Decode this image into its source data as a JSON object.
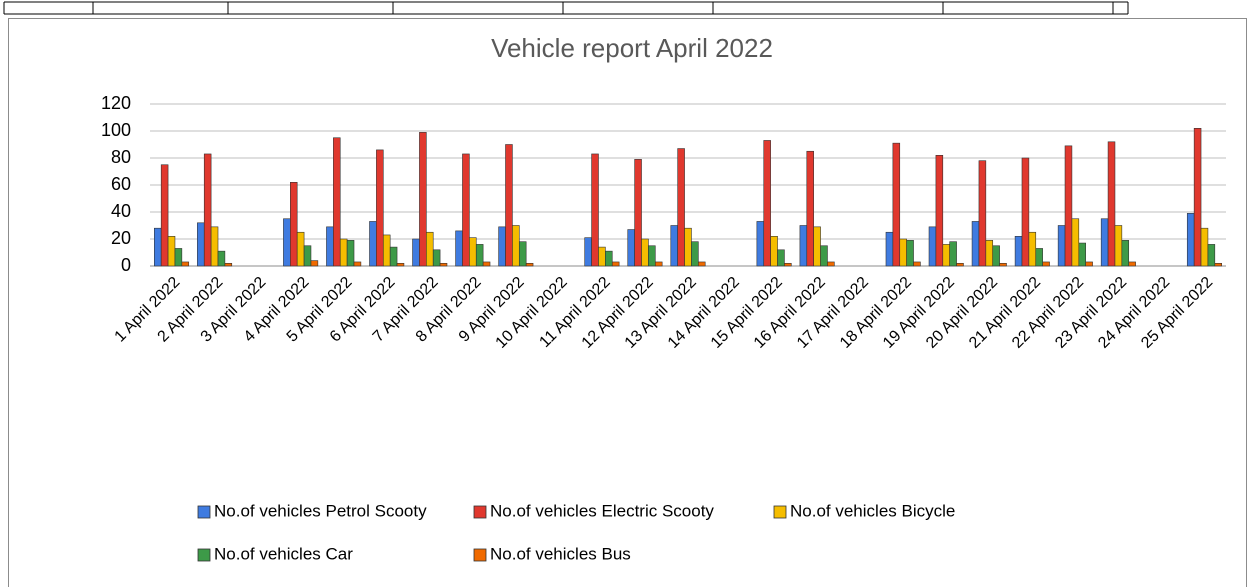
{
  "chart_data": {
    "type": "bar",
    "title": "Vehicle report April 2022",
    "categories": [
      "1 April 2022",
      "2 April 2022",
      "3 April 2022",
      "4 April 2022",
      "5 April 2022",
      "6 April 2022",
      "7 April 2022",
      "8 April 2022",
      "9 April 2022",
      "10 April 2022",
      "11 April 2022",
      "12 April 2022",
      "13 April 2022",
      "14 April 2022",
      "15 April 2022",
      "16 April 2022",
      "17 April 2022",
      "18 April 2022",
      "19 April 2022",
      "20 April 2022",
      "21 April 2022",
      "22 April 2022",
      "23 April 2022",
      "24 April 2022",
      "25 April 2022"
    ],
    "series": [
      {
        "name": "No.of vehicles Petrol Scooty",
        "color": "#3f7be0",
        "values": [
          28,
          32,
          null,
          35,
          29,
          33,
          20,
          26,
          29,
          null,
          21,
          27,
          30,
          null,
          33,
          30,
          null,
          25,
          29,
          33,
          22,
          30,
          35,
          null,
          39
        ]
      },
      {
        "name": "No.of vehicles Electric Scooty",
        "color": "#e0382e",
        "values": [
          75,
          83,
          null,
          62,
          95,
          86,
          99,
          83,
          90,
          null,
          83,
          79,
          87,
          null,
          93,
          85,
          null,
          91,
          82,
          78,
          80,
          89,
          92,
          null,
          102
        ]
      },
      {
        "name": "No.of vehicles Bicycle",
        "color": "#f5bd00",
        "values": [
          22,
          29,
          null,
          25,
          20,
          23,
          25,
          21,
          30,
          null,
          14,
          20,
          28,
          null,
          22,
          29,
          null,
          20,
          16,
          19,
          25,
          35,
          30,
          null,
          28
        ]
      },
      {
        "name": "No.of vehicles Car",
        "color": "#3d9a48",
        "values": [
          13,
          11,
          null,
          15,
          19,
          14,
          12,
          16,
          18,
          null,
          11,
          15,
          18,
          null,
          12,
          15,
          null,
          19,
          18,
          15,
          13,
          17,
          19,
          null,
          16
        ]
      },
      {
        "name": "No.of vehicles Bus",
        "color": "#f06a00",
        "values": [
          3,
          2,
          null,
          4,
          3,
          2,
          2,
          3,
          2,
          null,
          3,
          3,
          3,
          null,
          2,
          3,
          null,
          3,
          2,
          2,
          3,
          3,
          3,
          null,
          2
        ]
      }
    ],
    "ylim": [
      0,
      120
    ],
    "yticks": [
      0,
      20,
      40,
      60,
      80,
      100,
      120
    ],
    "grid": true
  }
}
